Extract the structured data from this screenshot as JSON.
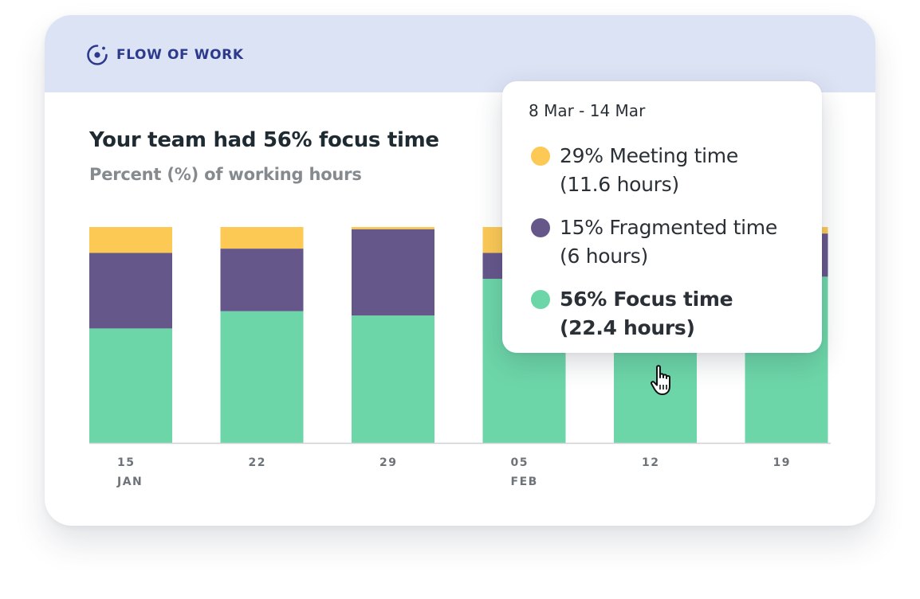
{
  "header": {
    "brand": "FLOW OF WORK",
    "brand_icon": "target-dot-icon"
  },
  "summary": {
    "title": "Your team had 56% focus time",
    "subtitle": "Percent (%) of working hours"
  },
  "colors": {
    "meeting": "#fcc955",
    "fragmented": "#66578b",
    "focus": "#6dd6a8",
    "header_bg": "#dce3f5",
    "brand": "#2d3a8c"
  },
  "chart_data": {
    "type": "bar",
    "stacked": true,
    "categories": [
      "15",
      "22",
      "29",
      "05",
      "12",
      "19"
    ],
    "category_sublabels": [
      "JAN",
      "",
      "",
      "FEB",
      "",
      ""
    ],
    "ylim": [
      0,
      100
    ],
    "grid": false,
    "series": [
      {
        "name": "Focus time",
        "values": [
          53,
          61,
          59,
          76,
          56,
          77
        ]
      },
      {
        "name": "Fragmented time",
        "values": [
          35,
          29,
          40,
          12,
          15,
          20
        ]
      },
      {
        "name": "Meeting time",
        "values": [
          12,
          10,
          1,
          12,
          29,
          3
        ]
      }
    ]
  },
  "tooltip": {
    "range": "8 Mar - 14 Mar",
    "items": [
      {
        "line1": "29% Meeting time",
        "line2": "(11.6 hours)"
      },
      {
        "line1": "15% Fragmented time",
        "line2": "(6 hours)"
      },
      {
        "line1": "56% Focus time",
        "line2": "(22.4 hours)"
      }
    ]
  },
  "cursor": "hand-pointer-icon"
}
